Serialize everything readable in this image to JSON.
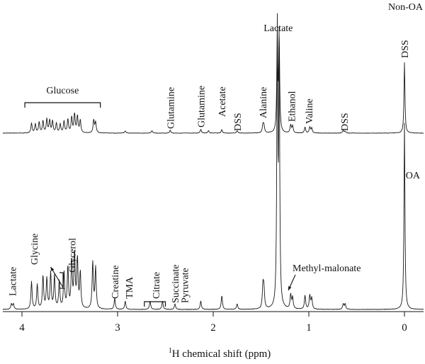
{
  "chart_data": {
    "type": "line",
    "xlabel_sup": "1",
    "xlabel": "H chemical shift (ppm)",
    "x_reversed": true,
    "xlim": [
      4.2,
      -0.2
    ],
    "ticks": [
      4,
      3,
      2,
      1,
      0
    ],
    "tick_labels": [
      "4",
      "3",
      "2",
      "1",
      "0"
    ],
    "series": [
      {
        "name": "Non-OA",
        "peaks": [
          {
            "ppm": 3.9,
            "h": 0.1
          },
          {
            "ppm": 3.86,
            "h": 0.09
          },
          {
            "ppm": 3.82,
            "h": 0.11
          },
          {
            "ppm": 3.78,
            "h": 0.12
          },
          {
            "ppm": 3.74,
            "h": 0.14
          },
          {
            "ppm": 3.71,
            "h": 0.13
          },
          {
            "ppm": 3.68,
            "h": 0.12
          },
          {
            "ppm": 3.64,
            "h": 0.1
          },
          {
            "ppm": 3.6,
            "h": 0.09
          },
          {
            "ppm": 3.56,
            "h": 0.12
          },
          {
            "ppm": 3.52,
            "h": 0.14
          },
          {
            "ppm": 3.48,
            "h": 0.16
          },
          {
            "ppm": 3.45,
            "h": 0.19
          },
          {
            "ppm": 3.42,
            "h": 0.17
          },
          {
            "ppm": 3.39,
            "h": 0.13
          },
          {
            "ppm": 3.25,
            "h": 0.13
          },
          {
            "ppm": 3.23,
            "h": 0.11
          },
          {
            "ppm": 2.92,
            "h": 0.02
          },
          {
            "ppm": 2.64,
            "h": 0.025
          },
          {
            "ppm": 2.45,
            "h": 0.03
          },
          {
            "ppm": 2.13,
            "h": 0.04
          },
          {
            "ppm": 2.05,
            "h": 0.025
          },
          {
            "ppm": 1.91,
            "h": 0.035
          },
          {
            "ppm": 1.75,
            "h": 0.025
          },
          {
            "ppm": 1.48,
            "h": 0.08
          },
          {
            "ppm": 1.47,
            "h": 0.07
          },
          {
            "ppm": 1.33,
            "h": 1.0
          },
          {
            "ppm": 1.31,
            "h": 0.96
          },
          {
            "ppm": 1.19,
            "h": 0.08
          },
          {
            "ppm": 1.17,
            "h": 0.07
          },
          {
            "ppm": 1.04,
            "h": 0.06
          },
          {
            "ppm": 0.99,
            "h": 0.06
          },
          {
            "ppm": 0.97,
            "h": 0.05
          },
          {
            "ppm": 0.64,
            "h": 0.025
          },
          {
            "ppm": 0.62,
            "h": 0.02
          },
          {
            "ppm": 0.0,
            "h": 0.72
          }
        ]
      },
      {
        "name": "OA",
        "peaks": [
          {
            "ppm": 4.11,
            "h": 0.02
          },
          {
            "ppm": 4.09,
            "h": 0.02
          },
          {
            "ppm": 3.9,
            "h": 0.1
          },
          {
            "ppm": 3.84,
            "h": 0.09
          },
          {
            "ppm": 3.78,
            "h": 0.12
          },
          {
            "ppm": 3.74,
            "h": 0.11
          },
          {
            "ppm": 3.7,
            "h": 0.13
          },
          {
            "ppm": 3.66,
            "h": 0.12
          },
          {
            "ppm": 3.61,
            "h": 0.1
          },
          {
            "ppm": 3.56,
            "h": 0.13
          },
          {
            "ppm": 3.52,
            "h": 0.15
          },
          {
            "ppm": 3.48,
            "h": 0.17
          },
          {
            "ppm": 3.45,
            "h": 0.2
          },
          {
            "ppm": 3.42,
            "h": 0.18
          },
          {
            "ppm": 3.39,
            "h": 0.13
          },
          {
            "ppm": 3.26,
            "h": 0.17
          },
          {
            "ppm": 3.23,
            "h": 0.15
          },
          {
            "ppm": 3.03,
            "h": 0.04
          },
          {
            "ppm": 2.92,
            "h": 0.03
          },
          {
            "ppm": 2.66,
            "h": 0.03
          },
          {
            "ppm": 2.53,
            "h": 0.03
          },
          {
            "ppm": 2.4,
            "h": 0.02
          },
          {
            "ppm": 2.13,
            "h": 0.03
          },
          {
            "ppm": 1.91,
            "h": 0.05
          },
          {
            "ppm": 1.75,
            "h": 0.02
          },
          {
            "ppm": 1.48,
            "h": 0.08
          },
          {
            "ppm": 1.47,
            "h": 0.07
          },
          {
            "ppm": 1.33,
            "h": 1.0
          },
          {
            "ppm": 1.31,
            "h": 0.97
          },
          {
            "ppm": 1.19,
            "h": 0.05
          },
          {
            "ppm": 1.17,
            "h": 0.04
          },
          {
            "ppm": 1.04,
            "h": 0.05
          },
          {
            "ppm": 0.99,
            "h": 0.05
          },
          {
            "ppm": 0.97,
            "h": 0.04
          },
          {
            "ppm": 0.64,
            "h": 0.02
          },
          {
            "ppm": 0.62,
            "h": 0.02
          },
          {
            "ppm": 0.0,
            "h": 0.68
          }
        ]
      }
    ],
    "annotations": {
      "nonoa": [
        {
          "text": "Glucose",
          "ppm": 3.55,
          "orient": "h"
        },
        {
          "text": "Glutamine",
          "ppm": 2.45,
          "orient": "v"
        },
        {
          "text": "Glutamine",
          "ppm": 2.13,
          "orient": "v"
        },
        {
          "text": "Acetate",
          "ppm": 1.91,
          "orient": "v"
        },
        {
          "text": "DSS",
          "ppm": 1.75,
          "orient": "v"
        },
        {
          "text": "Alanine",
          "ppm": 1.48,
          "orient": "v"
        },
        {
          "text": "Lactate",
          "ppm": 1.32,
          "orient": "h"
        },
        {
          "text": "Ethanol",
          "ppm": 1.18,
          "orient": "v"
        },
        {
          "text": "Valine",
          "ppm": 1.0,
          "orient": "v"
        },
        {
          "text": "DSS",
          "ppm": 0.63,
          "orient": "v"
        },
        {
          "text": "DSS",
          "ppm": 0.0,
          "orient": "v"
        }
      ],
      "oa": [
        {
          "text": "Lactate",
          "ppm": 4.1,
          "orient": "v"
        },
        {
          "text": "Glycine",
          "ppm": 3.71,
          "orient": "v"
        },
        {
          "text": "Glycerol",
          "ppm": 3.56,
          "orient": "v"
        },
        {
          "text": "Creatine",
          "ppm": 3.03,
          "orient": "v"
        },
        {
          "text": "TMA",
          "ppm": 2.88,
          "orient": "v"
        },
        {
          "text": "Citrate",
          "ppm": 2.6,
          "orient": "v"
        },
        {
          "text": "Succinate",
          "ppm": 2.4,
          "orient": "v"
        },
        {
          "text": "Pyruvate",
          "ppm": 2.3,
          "orient": "v"
        },
        {
          "text": "Methyl-malonate",
          "ppm": 1.18,
          "orient": "h"
        }
      ]
    },
    "grid": false,
    "legend": "none"
  }
}
